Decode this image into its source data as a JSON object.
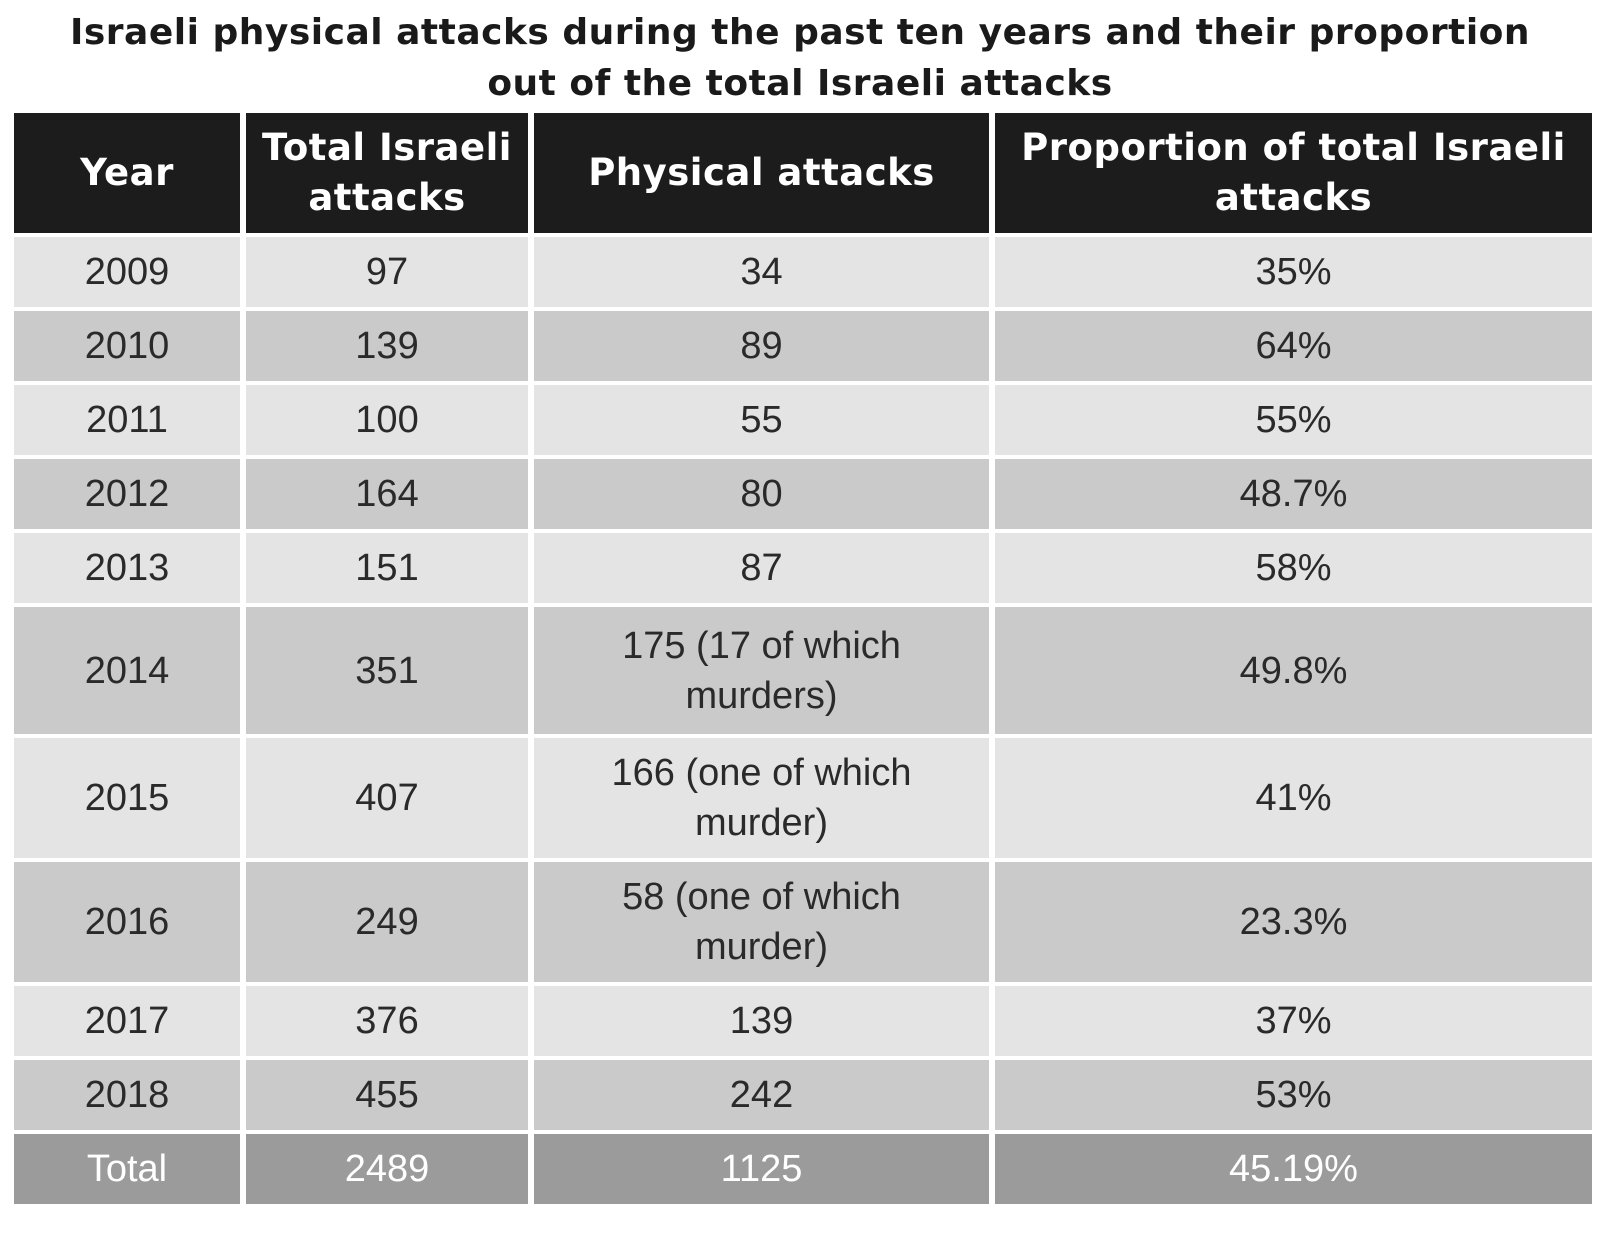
{
  "chart_data": {
    "type": "table",
    "title_lines": [
      "Israeli physical attacks during the past ten years and their proportion",
      "out of the total Israeli attacks"
    ],
    "columns": [
      "Year",
      "Total Israeli attacks",
      "Physical attacks",
      "Proportion of total Israeli attacks"
    ],
    "rows": [
      {
        "year": "2009",
        "total": "97",
        "physical": "34",
        "proportion": "35%"
      },
      {
        "year": "2010",
        "total": "139",
        "physical": "89",
        "proportion": "64%"
      },
      {
        "year": "2011",
        "total": "100",
        "physical": "55",
        "proportion": "55%"
      },
      {
        "year": "2012",
        "total": "164",
        "physical": "80",
        "proportion": "48.7%"
      },
      {
        "year": "2013",
        "total": "151",
        "physical": "87",
        "proportion": "58%"
      },
      {
        "year": "2014",
        "total": "351",
        "physical": "175 (17 of which\nmurders)",
        "proportion": "49.8%"
      },
      {
        "year": "2015",
        "total": "407",
        "physical": "166 (one of which\nmurder)",
        "proportion": "41%"
      },
      {
        "year": "2016",
        "total": "249",
        "physical": "58 (one of which\nmurder)",
        "proportion": "23.3%"
      },
      {
        "year": "2017",
        "total": "376",
        "physical": "139",
        "proportion": "37%"
      },
      {
        "year": "2018",
        "total": "455",
        "physical": "242",
        "proportion": "53%"
      }
    ],
    "total_row": {
      "year": "Total",
      "total": "2489",
      "physical": "1125",
      "proportion": "45.19%"
    }
  },
  "colors": {
    "header_bg": "#1c1c1c",
    "row_light": "#e4e4e4",
    "row_dark": "#cacaca",
    "total_bg": "#9b9b9b"
  }
}
